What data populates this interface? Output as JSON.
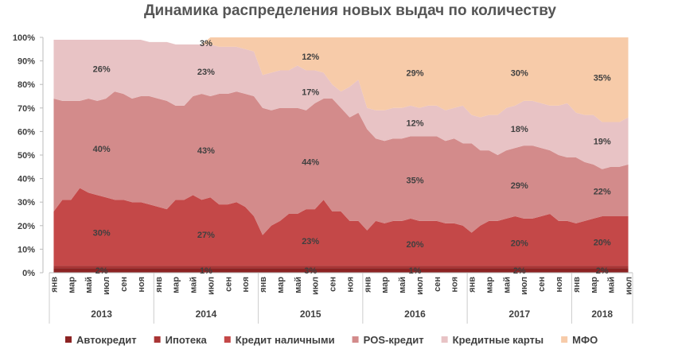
{
  "chart_data": {
    "type": "stacked-area",
    "title": "Динамика распределения новых выдач по количеству",
    "categories": [
      "янв",
      null,
      "мар",
      null,
      "май",
      null,
      "июл",
      null,
      "сен",
      null,
      "ноя",
      null,
      "янв",
      null,
      "мар",
      null,
      "май",
      null,
      "июл",
      null,
      "сен",
      null,
      "ноя",
      null,
      "янв",
      null,
      "мар",
      null,
      "май",
      null,
      "июл",
      null,
      "сен",
      null,
      "ноя",
      null,
      "янв",
      null,
      "мар",
      null,
      "май",
      null,
      "июл",
      null,
      "сен",
      null,
      "ноя",
      null,
      "янв",
      null,
      "мар",
      null,
      "май",
      null,
      "июл",
      null,
      "сен",
      null,
      "ноя",
      null,
      "янв",
      null,
      "мар",
      null,
      "май",
      null,
      "июл"
    ],
    "years": [
      "2013",
      "2014",
      "2015",
      "2016",
      "2017",
      "2018"
    ],
    "ylim": [
      0,
      100
    ],
    "yticks": [
      {
        "value": 0,
        "label": "0%"
      },
      {
        "value": 10,
        "label": "10%"
      },
      {
        "value": 20,
        "label": "20%"
      },
      {
        "value": 30,
        "label": "30%"
      },
      {
        "value": 40,
        "label": "40%"
      },
      {
        "value": 50,
        "label": "50%"
      },
      {
        "value": 60,
        "label": "60%"
      },
      {
        "value": 70,
        "label": "70%"
      },
      {
        "value": 80,
        "label": "80%"
      },
      {
        "value": 90,
        "label": "90%"
      },
      {
        "value": 100,
        "label": "100%"
      }
    ],
    "grid": false,
    "legend": "bottom",
    "series": [
      {
        "name": "Автокредит",
        "color": "#8c2323",
        "values": [
          2,
          2,
          2,
          2,
          2,
          2,
          2,
          2,
          2,
          2,
          2,
          2,
          2,
          2,
          2,
          2,
          2,
          2,
          2,
          2,
          2,
          2,
          2,
          2,
          2,
          2,
          2,
          2,
          2,
          2,
          2,
          2,
          2,
          2,
          2,
          2,
          2,
          2,
          2,
          2,
          2,
          2,
          2,
          2,
          2,
          2,
          2,
          2,
          2,
          2,
          2,
          2,
          2,
          2,
          2,
          2,
          2,
          2,
          2,
          2,
          2,
          2,
          2,
          2,
          2,
          2,
          2
        ],
        "year_values": [
          2,
          1,
          3,
          1,
          2,
          2
        ],
        "year_value_labels": [
          "2%",
          "1%",
          "3%",
          "1%",
          "2%",
          "2%"
        ]
      },
      {
        "name": "Ипотека",
        "color": "#a93535",
        "values": [
          1,
          1,
          1,
          1,
          1,
          1,
          1,
          1,
          1,
          1,
          1,
          1,
          1,
          1,
          1,
          1,
          1,
          1,
          1,
          1,
          1,
          1,
          1,
          1,
          1,
          1,
          1,
          1,
          1,
          1,
          1,
          1,
          1,
          1,
          1,
          1,
          1,
          1,
          1,
          1,
          1,
          1,
          1,
          1,
          1,
          1,
          1,
          1,
          1,
          1,
          1,
          1,
          1,
          1,
          1,
          1,
          1,
          1,
          1,
          1,
          1,
          1,
          1,
          1,
          1,
          1,
          1
        ],
        "year_values": [
          null,
          null,
          null,
          null,
          null,
          null
        ],
        "year_value_labels": [
          null,
          null,
          null,
          null,
          null,
          null
        ]
      },
      {
        "name": "Кредит наличными",
        "color": "#c44848",
        "values": [
          23,
          28,
          28,
          33,
          31,
          30,
          29,
          28,
          28,
          27,
          27,
          26,
          25,
          24,
          28,
          28,
          30,
          28,
          29,
          26,
          26,
          27,
          25,
          21,
          13,
          17,
          19,
          22,
          22,
          24,
          24,
          28,
          23,
          23,
          19,
          19,
          15,
          19,
          18,
          19,
          19,
          20,
          19,
          19,
          19,
          18,
          18,
          17,
          14,
          17,
          19,
          19,
          20,
          21,
          20,
          20,
          21,
          22,
          19,
          19,
          18,
          19,
          20,
          21,
          21,
          21,
          21
        ],
        "year_values": [
          30,
          27,
          23,
          20,
          20,
          20
        ],
        "year_value_labels": [
          "30%",
          "27%",
          "23%",
          "20%",
          "20%",
          "20%"
        ]
      },
      {
        "name": "POS-кредит",
        "color": "#d38b8b",
        "values": [
          48,
          42,
          42,
          37,
          40,
          40,
          42,
          46,
          45,
          44,
          45,
          46,
          46,
          46,
          40,
          40,
          42,
          45,
          43,
          47,
          47,
          47,
          48,
          51,
          54,
          49,
          48,
          45,
          45,
          42,
          45,
          43,
          48,
          44,
          44,
          46,
          43,
          35,
          35,
          35,
          35,
          35,
          36,
          36,
          36,
          35,
          36,
          35,
          38,
          32,
          30,
          28,
          29,
          29,
          31,
          31,
          29,
          27,
          28,
          27,
          28,
          25,
          23,
          20,
          21,
          21,
          22
        ],
        "year_values": [
          40,
          43,
          44,
          35,
          29,
          22
        ],
        "year_value_labels": [
          "40%",
          "43%",
          "44%",
          "35%",
          "29%",
          "22%"
        ]
      },
      {
        "name": "Кредитные карты",
        "color": "#e8c3c5",
        "values": [
          25,
          26,
          26,
          26,
          25,
          26,
          25,
          22,
          23,
          25,
          24,
          23,
          24,
          25,
          26,
          26,
          22,
          21,
          22,
          20,
          20,
          19,
          19,
          19,
          14,
          16,
          16,
          16,
          18,
          17,
          14,
          11,
          6,
          7,
          13,
          14,
          9,
          12,
          13,
          13,
          13,
          13,
          12,
          13,
          13,
          13,
          13,
          16,
          12,
          14,
          15,
          17,
          18,
          18,
          19,
          19,
          19,
          19,
          21,
          23,
          19,
          20,
          21,
          20,
          19,
          19,
          20
        ],
        "year_values": [
          26,
          23,
          17,
          12,
          18,
          19
        ],
        "year_value_labels": [
          "26%",
          "23%",
          "17%",
          "12%",
          "18%",
          "19%"
        ]
      },
      {
        "name": "МФО",
        "color": "#f7cba9",
        "values": [
          0,
          0,
          0,
          0,
          0,
          0,
          0,
          0,
          0,
          0,
          0,
          0,
          0,
          0,
          0,
          0,
          0,
          0,
          3,
          4,
          4,
          4,
          5,
          6,
          16,
          15,
          14,
          14,
          12,
          14,
          14,
          15,
          20,
          23,
          21,
          18,
          30,
          31,
          31,
          30,
          30,
          29,
          30,
          29,
          29,
          31,
          30,
          29,
          33,
          34,
          33,
          33,
          30,
          29,
          27,
          27,
          28,
          29,
          29,
          28,
          32,
          33,
          33,
          36,
          36,
          36,
          34
        ],
        "year_values": [
          null,
          3,
          12,
          29,
          30,
          35
        ],
        "year_value_labels": [
          null,
          "3%",
          "12%",
          "29%",
          "30%",
          "35%"
        ]
      }
    ]
  }
}
